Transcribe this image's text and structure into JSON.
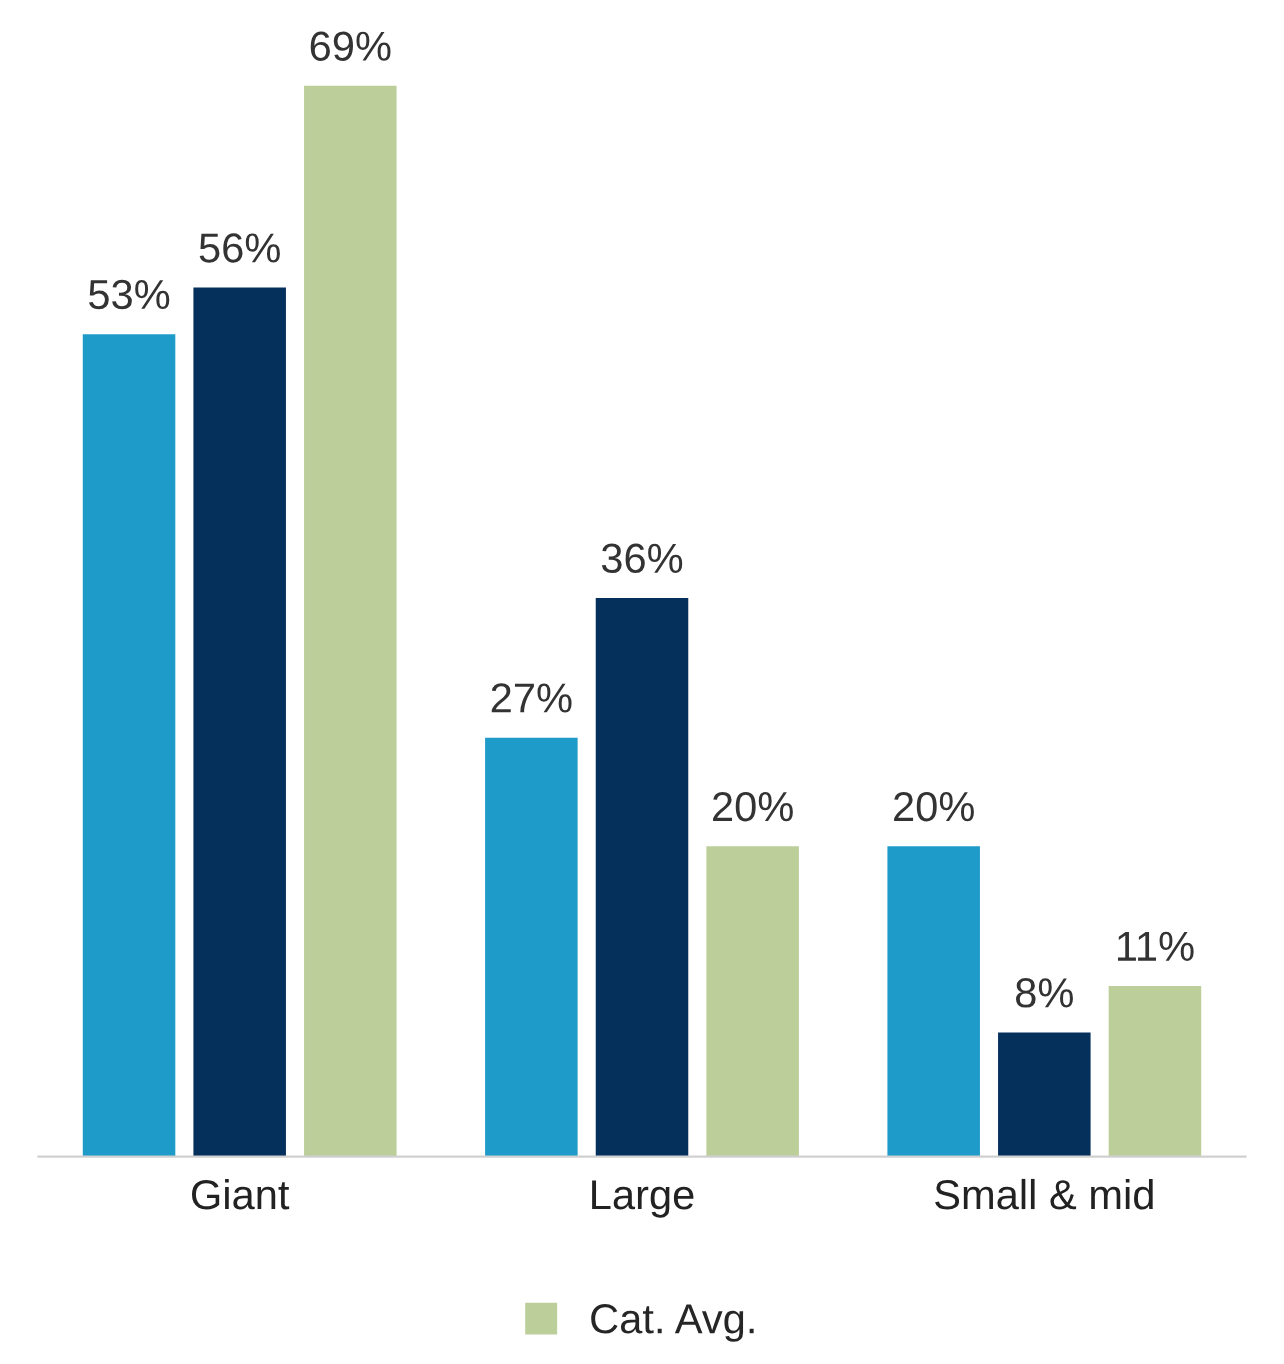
{
  "chart_data": {
    "type": "bar",
    "categories": [
      "Giant",
      "Large",
      "Small & mid"
    ],
    "series": [
      {
        "color": "#1f9bc9",
        "values": [
          53,
          27,
          20
        ],
        "value_labels": [
          "53%",
          "27%",
          "20%"
        ]
      },
      {
        "color": "#06305c",
        "values": [
          56,
          36,
          8
        ],
        "value_labels": [
          "56%",
          "36%",
          "8%"
        ]
      },
      {
        "name": "Cat. Avg.",
        "color": "#bccf9b",
        "values": [
          69,
          20,
          11
        ],
        "value_labels": [
          "69%",
          "20%",
          "11%"
        ]
      }
    ],
    "legend": "bottom",
    "grid": false
  }
}
